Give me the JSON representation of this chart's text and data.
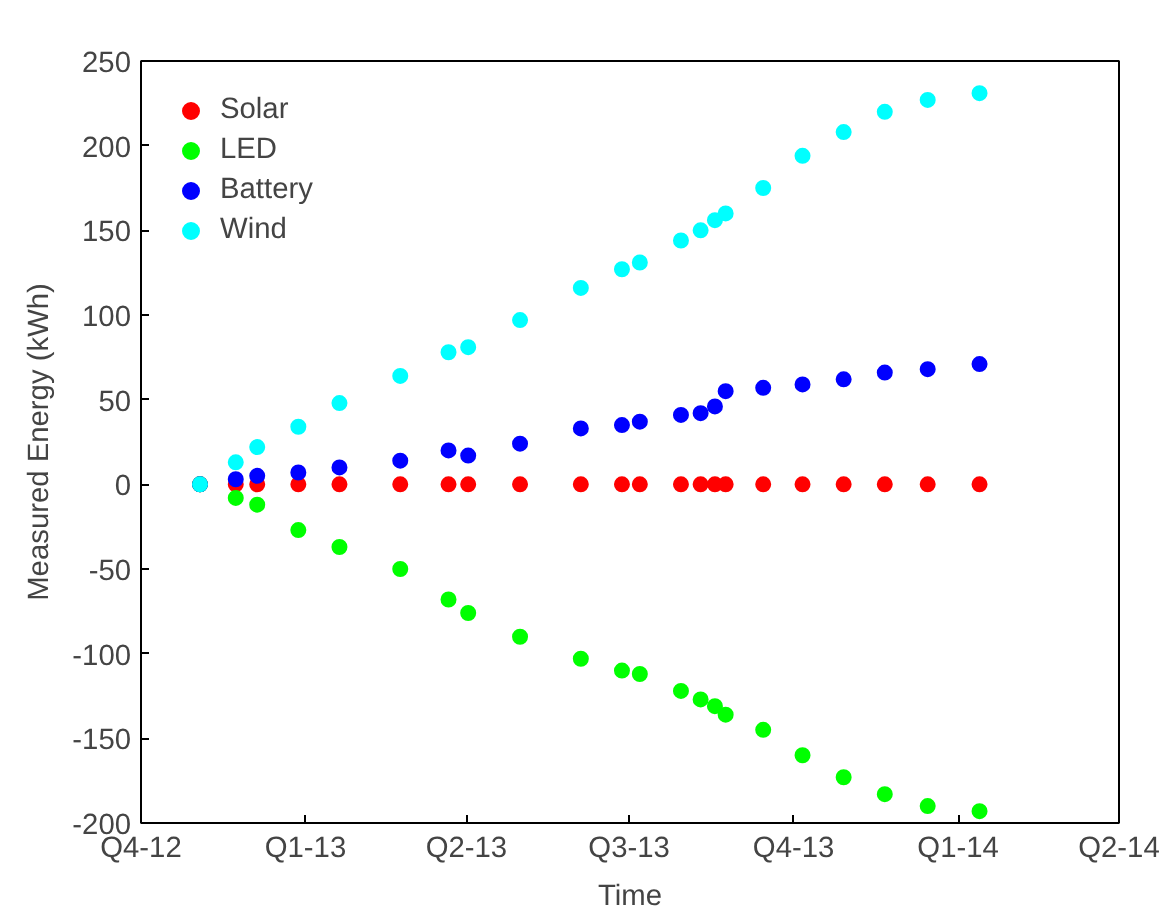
{
  "chart_data": {
    "type": "scatter",
    "xlabel": "Time",
    "ylabel": "Measured Energy (kWh)",
    "x": [
      "2012-11-03",
      "2012-11-23",
      "2012-12-05",
      "2012-12-28",
      "2013-01-20",
      "2013-02-23",
      "2013-03-22",
      "2013-04-02",
      "2013-05-01",
      "2013-06-04",
      "2013-06-27",
      "2013-07-07",
      "2013-07-30",
      "2013-08-10",
      "2013-08-18",
      "2013-08-24",
      "2013-09-14",
      "2013-10-06",
      "2013-10-29",
      "2013-11-21",
      "2013-12-15",
      "2014-01-13"
    ],
    "series": [
      {
        "name": "Solar",
        "color": "#ff0000",
        "values": [
          0,
          0,
          0,
          0,
          0,
          0,
          0,
          0,
          0,
          0,
          0,
          0,
          0,
          0,
          0,
          0,
          0,
          0,
          0,
          0,
          0,
          0
        ]
      },
      {
        "name": "LED",
        "color": "#00ff00",
        "values": [
          0,
          -8,
          -12,
          -27,
          -37,
          -50,
          -68,
          -76,
          -90,
          -103,
          -110,
          -112,
          -122,
          -127,
          -131,
          -136,
          -145,
          -160,
          -173,
          -183,
          -190,
          -193
        ]
      },
      {
        "name": "Battery",
        "color": "#0000ff",
        "values": [
          0,
          3,
          5,
          7,
          10,
          14,
          20,
          17,
          24,
          33,
          35,
          37,
          41,
          42,
          46,
          55,
          57,
          59,
          62,
          66,
          68,
          71
        ]
      },
      {
        "name": "Wind",
        "color": "#00ffff",
        "values": [
          0,
          13,
          22,
          34,
          48,
          64,
          78,
          81,
          97,
          116,
          127,
          131,
          144,
          150,
          156,
          160,
          175,
          194,
          208,
          220,
          227,
          231
        ]
      }
    ],
    "xlim": [
      "2012-10-01",
      "2014-04-01"
    ],
    "xticks": [
      {
        "value": "2012-10-01",
        "label": "Q4-12"
      },
      {
        "value": "2013-01-01",
        "label": "Q1-13"
      },
      {
        "value": "2013-04-01",
        "label": "Q2-13"
      },
      {
        "value": "2013-07-01",
        "label": "Q3-13"
      },
      {
        "value": "2013-10-01",
        "label": "Q4-13"
      },
      {
        "value": "2014-01-01",
        "label": "Q1-14"
      },
      {
        "value": "2014-04-01",
        "label": "Q2-14"
      }
    ],
    "ylim": [
      -200,
      250
    ],
    "yticks": [
      -200,
      -150,
      -100,
      -50,
      0,
      50,
      100,
      150,
      200,
      250
    ],
    "grid": false,
    "legend": "top left",
    "marker": "circle"
  }
}
